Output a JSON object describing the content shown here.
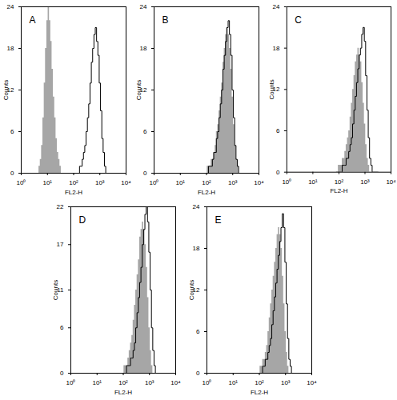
{
  "chart_data": [
    {
      "type": "area",
      "title": "A",
      "xlabel": "FL2-H",
      "ylabel": "Counts",
      "log": "x",
      "xlim": [
        1,
        10000
      ],
      "xticks": [
        {
          "value": 1,
          "label": "10⁰"
        },
        {
          "value": 10,
          "label": "10¹"
        },
        {
          "value": 100,
          "label": "10²"
        },
        {
          "value": 1000,
          "label": "10³"
        },
        {
          "value": 10000,
          "label": "10⁴"
        }
      ],
      "ylim": [
        0,
        24
      ],
      "yticks": [
        0,
        6,
        12,
        18,
        24
      ],
      "x": [
        3.98,
        4.47,
        5.01,
        5.62,
        6.31,
        7.08,
        7.94,
        8.91,
        10,
        11.2,
        12.6,
        14.1,
        15.8,
        17.8,
        20,
        22.4,
        25.1,
        28.2,
        31.6,
        35.5,
        39.8,
        44.7,
        50.1,
        56.2,
        63.1,
        70.8,
        79.4,
        89.1,
        100,
        112,
        126,
        141,
        158,
        178,
        200,
        224,
        251,
        282,
        316,
        355,
        398,
        447,
        501,
        562,
        631,
        708,
        794,
        891,
        1000,
        1122,
        1259,
        1413,
        1585,
        1778,
        1995,
        2239,
        2512,
        2818,
        3162
      ],
      "series": [
        {
          "type": "area",
          "color": "#a6a6a6",
          "values": [
            0,
            0,
            1,
            2,
            4,
            8,
            13,
            18,
            22,
            24,
            22,
            19,
            15,
            11,
            8,
            5,
            3,
            2,
            1,
            0,
            0,
            0,
            0,
            0,
            0,
            0,
            0,
            0,
            0,
            0,
            0,
            0,
            0,
            0,
            0,
            0,
            0,
            0,
            0,
            0,
            0,
            0,
            0,
            0,
            0,
            0,
            0,
            0,
            0,
            0,
            0,
            0,
            0,
            0,
            0,
            0,
            0,
            0,
            0
          ]
        },
        {
          "type": "line",
          "color": "#000000",
          "values": [
            0,
            0,
            0,
            0,
            0,
            0,
            0,
            0,
            0,
            0,
            0,
            0,
            0,
            0,
            0,
            0,
            0,
            0,
            0,
            0,
            0,
            0,
            0,
            0,
            0,
            0,
            0,
            0,
            0,
            0,
            0,
            0,
            0,
            1,
            1,
            2,
            3,
            4,
            6,
            8,
            10,
            13,
            16,
            18,
            20,
            21,
            19,
            17,
            13,
            9,
            5,
            3,
            1,
            0,
            0,
            0,
            0,
            0,
            0
          ]
        }
      ]
    },
    {
      "type": "area",
      "title": "B",
      "xlabel": "FL2-H",
      "ylabel": "Counts",
      "log": "x",
      "xlim": [
        1,
        10000
      ],
      "xticks": [
        {
          "value": 1,
          "label": "10⁰"
        },
        {
          "value": 10,
          "label": "10¹"
        },
        {
          "value": 100,
          "label": "10²"
        },
        {
          "value": 1000,
          "label": "10³"
        },
        {
          "value": 10000,
          "label": "10⁴"
        }
      ],
      "ylim": [
        0,
        24
      ],
      "yticks": [
        0,
        6,
        12,
        18,
        24
      ],
      "x": [
        79.4,
        89.1,
        100,
        112,
        126,
        141,
        158,
        178,
        200,
        224,
        251,
        282,
        316,
        355,
        398,
        447,
        501,
        562,
        631,
        708,
        794,
        891,
        1000,
        1122,
        1259,
        1413,
        1585,
        1778,
        1995,
        2239,
        2512,
        2818,
        3162
      ],
      "series": [
        {
          "type": "area",
          "color": "#a6a6a6",
          "values": [
            0,
            0,
            0,
            1,
            1,
            1,
            2,
            2,
            3,
            4,
            6,
            7,
            9,
            11,
            13,
            16,
            18,
            20,
            21,
            20,
            18,
            15,
            11,
            7,
            4,
            2,
            1,
            0,
            0,
            0,
            0,
            0,
            0
          ]
        },
        {
          "type": "line",
          "color": "#000000",
          "values": [
            0,
            0,
            0,
            0,
            1,
            1,
            1,
            2,
            3,
            3,
            5,
            6,
            8,
            10,
            12,
            15,
            17,
            19,
            21,
            22,
            20,
            17,
            12,
            8,
            4,
            2,
            1,
            0,
            0,
            0,
            0,
            0,
            0
          ]
        }
      ]
    },
    {
      "type": "area",
      "title": "C",
      "xlabel": "FL2-H",
      "ylabel": "Counts",
      "log": "x",
      "xlim": [
        1,
        10000
      ],
      "xticks": [
        {
          "value": 1,
          "label": "10⁰"
        },
        {
          "value": 10,
          "label": "10¹"
        },
        {
          "value": 100,
          "label": "10²"
        },
        {
          "value": 1000,
          "label": "10³"
        },
        {
          "value": 10000,
          "label": "10⁴"
        }
      ],
      "ylim": [
        0,
        24
      ],
      "yticks": [
        0,
        6,
        12,
        18,
        24
      ],
      "x": [
        79.4,
        89.1,
        100,
        112,
        126,
        141,
        158,
        178,
        200,
        224,
        251,
        282,
        316,
        355,
        398,
        447,
        501,
        562,
        631,
        708,
        794,
        891,
        1000,
        1122,
        1259,
        1413,
        1585,
        1778,
        1995,
        2239,
        2512,
        2818,
        3162
      ],
      "series": [
        {
          "type": "area",
          "color": "#a6a6a6",
          "values": [
            0,
            0,
            1,
            1,
            1,
            2,
            2,
            3,
            4,
            5,
            6,
            8,
            10,
            12,
            14,
            16,
            17,
            18,
            17,
            16,
            13,
            10,
            7,
            4,
            2,
            1,
            0,
            0,
            0,
            0,
            0,
            0,
            0
          ]
        },
        {
          "type": "line",
          "color": "#000000",
          "values": [
            0,
            0,
            0,
            0,
            0,
            1,
            1,
            1,
            2,
            2,
            3,
            4,
            5,
            7,
            9,
            11,
            13,
            15,
            17,
            18,
            20,
            21,
            19,
            14,
            9,
            5,
            2,
            1,
            0,
            0,
            0,
            0,
            0
          ]
        }
      ]
    },
    {
      "type": "area",
      "title": "D",
      "xlabel": "FL2-H",
      "ylabel": "Counts",
      "log": "x",
      "xlim": [
        1,
        10000
      ],
      "xticks": [
        {
          "value": 1,
          "label": "10⁰"
        },
        {
          "value": 10,
          "label": "10¹"
        },
        {
          "value": 100,
          "label": "10²"
        },
        {
          "value": 1000,
          "label": "10³"
        },
        {
          "value": 10000,
          "label": "10⁴"
        }
      ],
      "ylim": [
        0,
        22
      ],
      "yticks": [
        0,
        6,
        11,
        17,
        22
      ],
      "x": [
        79.4,
        89.1,
        100,
        112,
        126,
        141,
        158,
        178,
        200,
        224,
        251,
        282,
        316,
        355,
        398,
        447,
        501,
        562,
        631,
        708,
        794,
        891,
        1000,
        1122,
        1259,
        1413,
        1585,
        1778,
        1995,
        2239,
        2512,
        2818,
        3162
      ],
      "series": [
        {
          "type": "area",
          "color": "#a6a6a6",
          "values": [
            0,
            0,
            0,
            1,
            1,
            1,
            2,
            3,
            4,
            5,
            7,
            9,
            11,
            13,
            15,
            18,
            19,
            20,
            19,
            17,
            14,
            10,
            6,
            3,
            1,
            0,
            0,
            0,
            0,
            0,
            0,
            0,
            0
          ]
        },
        {
          "type": "line",
          "color": "#000000",
          "values": [
            0,
            0,
            0,
            0,
            0,
            1,
            1,
            1,
            2,
            2,
            3,
            4,
            6,
            8,
            10,
            12,
            14,
            17,
            19,
            21,
            22,
            20,
            16,
            11,
            6,
            3,
            1,
            0,
            0,
            0,
            0,
            0,
            0
          ]
        }
      ]
    },
    {
      "type": "area",
      "title": "E",
      "xlabel": "FL2-H",
      "ylabel": "Counts",
      "log": "x",
      "xlim": [
        1,
        10000
      ],
      "xticks": [
        {
          "value": 1,
          "label": "10⁰"
        },
        {
          "value": 10,
          "label": "10¹"
        },
        {
          "value": 100,
          "label": "10²"
        },
        {
          "value": 1000,
          "label": "10³"
        },
        {
          "value": 10000,
          "label": "10⁴"
        }
      ],
      "ylim": [
        0,
        24
      ],
      "yticks": [
        0,
        6,
        12,
        18,
        24
      ],
      "x": [
        79.4,
        89.1,
        100,
        112,
        126,
        141,
        158,
        178,
        200,
        224,
        251,
        282,
        316,
        355,
        398,
        447,
        501,
        562,
        631,
        708,
        794,
        891,
        1000,
        1122,
        1259,
        1413,
        1585,
        1778,
        1995,
        2239,
        2512,
        2818,
        3162
      ],
      "series": [
        {
          "type": "area",
          "color": "#a6a6a6",
          "values": [
            0,
            0,
            0,
            1,
            1,
            2,
            2,
            3,
            4,
            6,
            8,
            10,
            12,
            14,
            16,
            18,
            20,
            21,
            20,
            18,
            14,
            10,
            6,
            3,
            1,
            0,
            0,
            0,
            0,
            0,
            0,
            0,
            0
          ]
        },
        {
          "type": "line",
          "color": "#000000",
          "values": [
            0,
            0,
            0,
            0,
            0,
            1,
            1,
            2,
            2,
            3,
            4,
            5,
            7,
            9,
            11,
            13,
            15,
            17,
            19,
            21,
            23,
            21,
            16,
            10,
            5,
            2,
            1,
            0,
            0,
            0,
            0,
            0,
            0
          ]
        }
      ]
    }
  ]
}
